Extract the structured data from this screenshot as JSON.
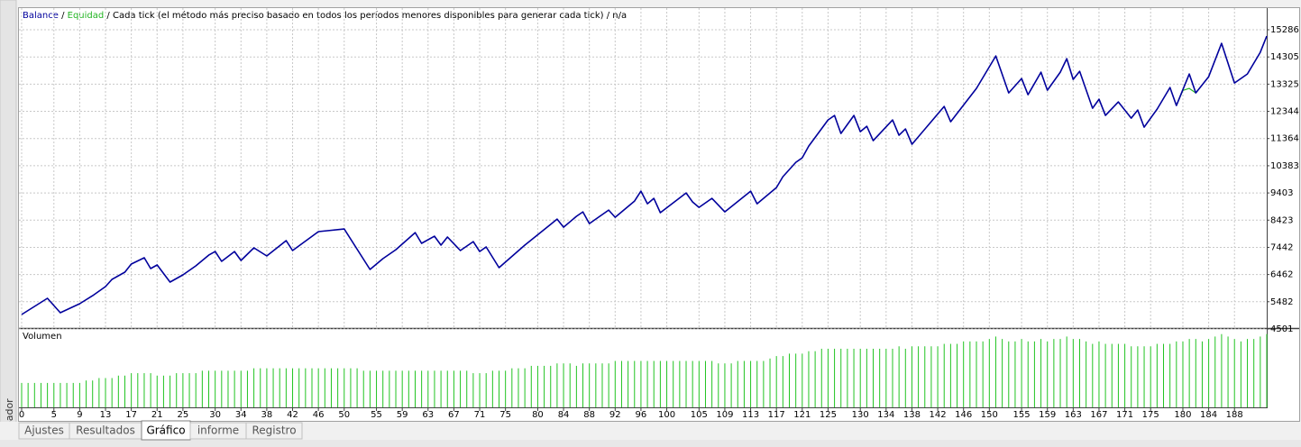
{
  "chart_data": [
    {
      "type": "line",
      "legend_separator": " / ",
      "subtitle": "Cada tick (el método más preciso basado en todos los períodos menores disponibles para generar cada tick)",
      "mode": "n/a",
      "series": [
        {
          "name": "Balance",
          "color": "#00009c",
          "x": [
            0,
            4,
            6,
            9,
            11,
            13,
            14,
            16,
            17,
            19,
            20,
            21,
            23,
            25,
            27,
            29,
            30,
            31,
            33,
            34,
            36,
            38,
            41,
            42,
            46,
            50,
            54,
            56,
            58,
            61,
            62,
            64,
            65,
            66,
            68,
            70,
            71,
            72,
            74,
            78,
            82,
            83,
            84,
            86,
            87,
            88,
            89,
            91,
            92,
            95,
            96,
            97,
            98,
            99,
            103,
            104,
            105,
            107,
            109,
            113,
            114,
            117,
            118,
            120,
            121,
            122,
            125,
            126,
            127,
            129,
            130,
            131,
            132,
            135,
            136,
            137,
            138,
            143,
            144,
            148,
            151,
            153,
            155,
            156,
            158,
            159,
            161,
            162,
            163,
            164,
            166,
            167,
            168,
            170,
            172,
            173,
            174,
            176,
            178,
            179,
            181,
            182,
            184,
            186,
            188,
            190,
            192,
            193
          ],
          "values": [
            5020,
            5605,
            5085,
            5410,
            5700,
            6027,
            6287,
            6547,
            6839,
            7066,
            6677,
            6806,
            6189,
            6449,
            6774,
            7163,
            7293,
            6936,
            7293,
            6969,
            7423,
            7131,
            7683,
            7326,
            8008,
            8105,
            6644,
            7034,
            7358,
            7975,
            7586,
            7845,
            7521,
            7813,
            7326,
            7650,
            7293,
            7456,
            6709,
            7521,
            8268,
            8462,
            8170,
            8560,
            8722,
            8300,
            8462,
            8787,
            8527,
            9112,
            9469,
            9014,
            9209,
            8690,
            9404,
            9079,
            8884,
            9209,
            8722,
            9469,
            9014,
            9599,
            9988,
            10508,
            10670,
            11093,
            12033,
            12196,
            11547,
            12196,
            11612,
            11807,
            11287,
            12033,
            11482,
            11709,
            11157,
            12521,
            11969,
            13170,
            14339,
            13008,
            13528,
            12943,
            13755,
            13106,
            13755,
            14242,
            13495,
            13787,
            12456,
            12781,
            12196,
            12683,
            12099,
            12391,
            11774,
            12423,
            13203,
            12553,
            13690,
            13008,
            13593,
            14794,
            13365,
            13690,
            14469,
            15054
          ]
        },
        {
          "name": "Equidad",
          "color": "#22b422",
          "x": [
            179,
            180,
            181,
            182
          ],
          "values": [
            12553,
            13100,
            13170,
            13008
          ]
        }
      ],
      "xlim": [
        0,
        193
      ],
      "xticks": [
        0,
        5,
        9,
        13,
        17,
        21,
        25,
        30,
        34,
        38,
        42,
        46,
        50,
        55,
        59,
        63,
        67,
        71,
        75,
        80,
        84,
        88,
        92,
        96,
        100,
        105,
        109,
        113,
        117,
        121,
        125,
        130,
        134,
        138,
        142,
        146,
        150,
        155,
        159,
        163,
        167,
        171,
        175,
        180,
        184,
        188
      ],
      "ylim": [
        4501,
        16033
      ],
      "yticks": [
        4501,
        5482,
        6462,
        7442,
        8423,
        9403,
        10383,
        11364,
        12344,
        13325,
        14305,
        15286
      ],
      "grid": true
    },
    {
      "type": "bar",
      "title": "Volumen",
      "color": "#22c422",
      "ylim": [
        0,
        0.31
      ],
      "values": [
        0.1,
        0.1,
        0.1,
        0.1,
        0.1,
        0.1,
        0.1,
        0.1,
        0.1,
        0.1,
        0.11,
        0.11,
        0.12,
        0.12,
        0.12,
        0.13,
        0.13,
        0.14,
        0.14,
        0.14,
        0.14,
        0.13,
        0.13,
        0.13,
        0.14,
        0.14,
        0.14,
        0.14,
        0.15,
        0.15,
        0.15,
        0.15,
        0.15,
        0.15,
        0.15,
        0.15,
        0.16,
        0.16,
        0.16,
        0.16,
        0.16,
        0.16,
        0.16,
        0.16,
        0.16,
        0.16,
        0.16,
        0.16,
        0.16,
        0.16,
        0.16,
        0.16,
        0.16,
        0.15,
        0.15,
        0.15,
        0.15,
        0.15,
        0.15,
        0.15,
        0.15,
        0.15,
        0.15,
        0.15,
        0.15,
        0.15,
        0.15,
        0.15,
        0.15,
        0.15,
        0.14,
        0.14,
        0.14,
        0.15,
        0.15,
        0.15,
        0.16,
        0.16,
        0.16,
        0.17,
        0.17,
        0.17,
        0.17,
        0.18,
        0.18,
        0.18,
        0.17,
        0.18,
        0.18,
        0.18,
        0.18,
        0.18,
        0.19,
        0.19,
        0.19,
        0.19,
        0.19,
        0.19,
        0.19,
        0.19,
        0.19,
        0.19,
        0.19,
        0.19,
        0.19,
        0.19,
        0.19,
        0.19,
        0.18,
        0.18,
        0.18,
        0.19,
        0.19,
        0.19,
        0.19,
        0.19,
        0.2,
        0.21,
        0.21,
        0.22,
        0.22,
        0.22,
        0.23,
        0.23,
        0.24,
        0.24,
        0.24,
        0.24,
        0.24,
        0.24,
        0.24,
        0.24,
        0.24,
        0.24,
        0.24,
        0.24,
        0.25,
        0.24,
        0.25,
        0.25,
        0.25,
        0.25,
        0.25,
        0.26,
        0.26,
        0.26,
        0.27,
        0.27,
        0.27,
        0.27,
        0.28,
        0.29,
        0.28,
        0.27,
        0.27,
        0.28,
        0.27,
        0.27,
        0.28,
        0.27,
        0.28,
        0.28,
        0.29,
        0.28,
        0.28,
        0.27,
        0.26,
        0.27,
        0.26,
        0.26,
        0.26,
        0.26,
        0.25,
        0.25,
        0.25,
        0.25,
        0.26,
        0.26,
        0.26,
        0.27,
        0.27,
        0.28,
        0.28,
        0.27,
        0.28,
        0.29,
        0.3,
        0.29,
        0.28,
        0.27,
        0.28,
        0.28,
        0.29,
        0.3
      ]
    }
  ],
  "tabs": [
    "Ajustes",
    "Resultados",
    "Gráfico",
    "informe",
    "Registro"
  ],
  "active_tab": 2,
  "side_label": "Probador"
}
